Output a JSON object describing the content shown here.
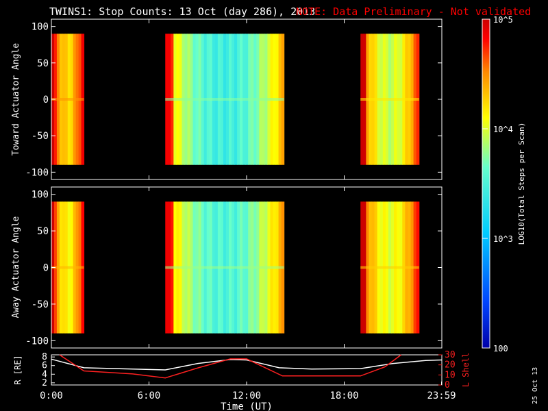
{
  "title": {
    "main": "TWINS1: Stop Counts: 13 Oct (day 286), 2013",
    "note": "NOTE: Data Preliminary - Not validated",
    "note_color": "#ff0000"
  },
  "date_stamp": "25 Oct 13",
  "colorbar": {
    "label": "LOG10(Total Steps per Scan)",
    "ticks": [
      "10^5",
      "10^4",
      "10^3",
      "100"
    ],
    "range": [
      100,
      100000
    ],
    "scale": "log",
    "colors": [
      "#0000aa",
      "#0044ff",
      "#00ccff",
      "#66ffcc",
      "#ffff00",
      "#ff8800",
      "#ff0000",
      "#cc0000"
    ]
  },
  "chart_data": [
    {
      "type": "heatmap",
      "panel": "top",
      "ylabel": "Toward Actuator Angle",
      "ylim": [
        -110,
        110
      ],
      "yticks": [
        "100",
        "50",
        "0",
        "-50",
        "-100"
      ],
      "x_hours": [
        0,
        24
      ],
      "data_angle_range": [
        -90,
        90
      ],
      "segments": [
        {
          "start_hour": 0.0,
          "end_hour": 2.0,
          "level": 0.62
        },
        {
          "start_hour": 7.0,
          "end_hour": 14.3,
          "level": 0.38
        },
        {
          "start_hour": 19.0,
          "end_hour": 22.6,
          "level": 0.52
        }
      ]
    },
    {
      "type": "heatmap",
      "panel": "middle",
      "ylabel": "Away Actuator Angle",
      "ylim": [
        -110,
        110
      ],
      "yticks": [
        "100",
        "50",
        "0",
        "-50",
        "-100"
      ],
      "x_hours": [
        0,
        24
      ],
      "data_angle_range": [
        -90,
        90
      ],
      "segments": [
        {
          "start_hour": 0.0,
          "end_hour": 2.0,
          "level": 0.58
        },
        {
          "start_hour": 7.0,
          "end_hour": 14.3,
          "level": 0.4
        },
        {
          "start_hour": 19.0,
          "end_hour": 22.6,
          "level": 0.55
        }
      ]
    },
    {
      "type": "line",
      "panel": "bottom",
      "ylabel_left": "R [RE]",
      "ylabel_right": "L Shell",
      "yticks_left": [
        "8",
        "6",
        "4",
        "2"
      ],
      "yticks_right": [
        "30",
        "20",
        "10",
        "0"
      ],
      "ylim_left": [
        1.5,
        8.5
      ],
      "ylim_right": [
        0,
        30
      ],
      "xticks": [
        "0:00",
        "6:00",
        "12:00",
        "18:00",
        "23:59"
      ],
      "xlabel": "Time (UT)",
      "series": [
        {
          "name": "R",
          "color": "#ffffff",
          "x": [
            0,
            2,
            5,
            7,
            9,
            11,
            12,
            14,
            16,
            19,
            21,
            23,
            24
          ],
          "y": [
            7.5,
            5.5,
            5.2,
            5.0,
            6.5,
            7.4,
            7.3,
            5.5,
            5.2,
            5.3,
            6.5,
            7.2,
            7.3
          ]
        },
        {
          "name": "L Shell",
          "color": "#ff2020",
          "x": [
            0.5,
            2,
            5,
            7,
            9,
            11,
            12,
            14.2,
            16,
            19,
            20.5,
            21.5
          ],
          "y": [
            30,
            14,
            11,
            7,
            17,
            26,
            26,
            9,
            9,
            9,
            18,
            30
          ]
        }
      ]
    }
  ]
}
